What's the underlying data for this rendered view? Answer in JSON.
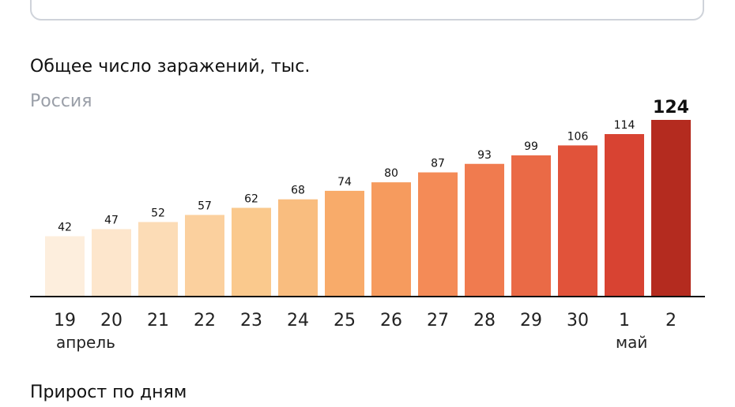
{
  "header": {
    "title": "Общее число заражений, тыс.",
    "subtitle": "Россия"
  },
  "footer": {
    "next_title": "Прирост по дням"
  },
  "chart_data": {
    "type": "bar",
    "title": "Общее число заражений, тыс.",
    "subtitle": "Россия",
    "categories": [
      "19",
      "20",
      "21",
      "22",
      "23",
      "24",
      "25",
      "26",
      "27",
      "28",
      "29",
      "30",
      "1",
      "2"
    ],
    "values": [
      42,
      47,
      52,
      57,
      62,
      68,
      74,
      80,
      87,
      93,
      99,
      106,
      114,
      124
    ],
    "bar_colors": [
      "#fdeedd",
      "#fde6cc",
      "#fcdcb6",
      "#fbd09e",
      "#fac98d",
      "#f9bd7f",
      "#f8ab6a",
      "#f69b5e",
      "#f48b57",
      "#f07b4f",
      "#ea6a46",
      "#e1533a",
      "#d84332",
      "#b42b1f"
    ],
    "weekend_indices": [
      0,
      6,
      7,
      13
    ],
    "weekend_tick_color": "#d9432f",
    "month_labels": [
      {
        "text": "апрель",
        "index": 0
      },
      {
        "text": "май",
        "index": 12
      }
    ],
    "ylim": [
      0,
      124
    ],
    "grid": false,
    "highlight_last": true
  }
}
